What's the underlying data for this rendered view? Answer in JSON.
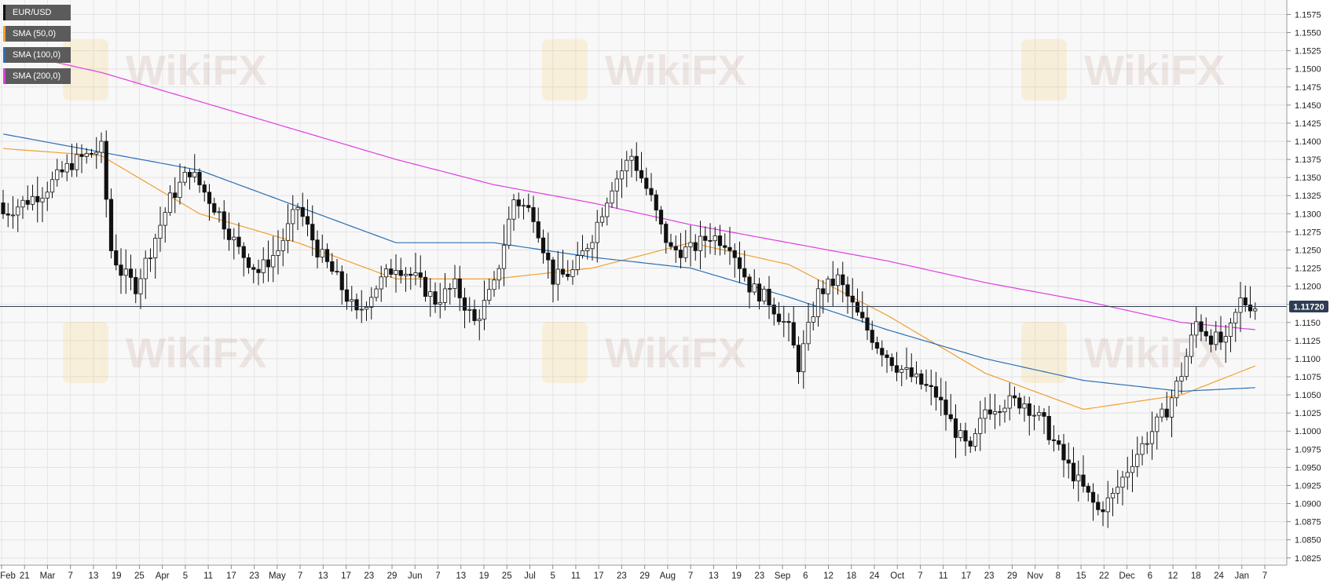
{
  "watermark": {
    "text": "WikiFX"
  },
  "legend": [
    {
      "label": "EUR/USD",
      "color": "#111111"
    },
    {
      "label": "SMA (50,0)",
      "color": "#f0a030"
    },
    {
      "label": "SMA (100,0)",
      "color": "#2c6fb4"
    },
    {
      "label": "SMA (200,0)",
      "color": "#e03ce0"
    }
  ],
  "current_price": {
    "label": "1.11720",
    "value": 1.1172,
    "color": "#2f3e55"
  },
  "chart_data": {
    "type": "candlestick",
    "symbol": "EUR/USD",
    "ylim": [
      1.0815,
      1.1595
    ],
    "grid": true,
    "y_ticks": [
      "1.1575",
      "1.1550",
      "1.1525",
      "1.1500",
      "1.1475",
      "1.1450",
      "1.1425",
      "1.1400",
      "1.1375",
      "1.1350",
      "1.1325",
      "1.1300",
      "1.1275",
      "1.1250",
      "1.1225",
      "1.1200",
      "1.1175",
      "1.1150",
      "1.1125",
      "1.1100",
      "1.1075",
      "1.1050",
      "1.1025",
      "1.1000",
      "1.0975",
      "1.0950",
      "1.0925",
      "1.0900",
      "1.0875",
      "1.0850",
      "1.0825"
    ],
    "x_ticks": [
      "Feb",
      "21",
      "Mar",
      "7",
      "13",
      "19",
      "25",
      "Apr",
      "5",
      "11",
      "17",
      "23",
      "May",
      "7",
      "13",
      "17",
      "23",
      "29",
      "Jun",
      "7",
      "13",
      "19",
      "25",
      "Jul",
      "5",
      "11",
      "17",
      "23",
      "29",
      "Aug",
      "7",
      "13",
      "19",
      "23",
      "Sep",
      "6",
      "12",
      "18",
      "24",
      "Oct",
      "7",
      "11",
      "17",
      "23",
      "29",
      "Nov",
      "8",
      "15",
      "22",
      "Dec",
      "6",
      "12",
      "18",
      "24",
      "Jan",
      "7"
    ],
    "bar_count": 256,
    "close_anchors": [
      [
        0,
        1.13
      ],
      [
        8,
        1.133
      ],
      [
        14,
        1.137
      ],
      [
        20,
        1.139
      ],
      [
        22,
        1.125
      ],
      [
        24,
        1.122
      ],
      [
        27,
        1.12
      ],
      [
        30,
        1.125
      ],
      [
        34,
        1.132
      ],
      [
        38,
        1.136
      ],
      [
        41,
        1.133
      ],
      [
        44,
        1.13
      ],
      [
        48,
        1.125
      ],
      [
        52,
        1.122
      ],
      [
        56,
        1.125
      ],
      [
        60,
        1.131
      ],
      [
        64,
        1.125
      ],
      [
        68,
        1.121
      ],
      [
        72,
        1.116
      ],
      [
        76,
        1.12
      ],
      [
        80,
        1.123
      ],
      [
        84,
        1.121
      ],
      [
        88,
        1.118
      ],
      [
        92,
        1.12
      ],
      [
        96,
        1.115
      ],
      [
        100,
        1.12
      ],
      [
        104,
        1.132
      ],
      [
        108,
        1.13
      ],
      [
        112,
        1.121
      ],
      [
        116,
        1.122
      ],
      [
        120,
        1.127
      ],
      [
        124,
        1.134
      ],
      [
        128,
        1.138
      ],
      [
        132,
        1.132
      ],
      [
        134,
        1.128
      ],
      [
        136,
        1.125
      ],
      [
        140,
        1.125
      ],
      [
        144,
        1.127
      ],
      [
        148,
        1.126
      ],
      [
        152,
        1.12
      ],
      [
        156,
        1.118
      ],
      [
        160,
        1.114
      ],
      [
        162,
        1.109
      ],
      [
        166,
        1.119
      ],
      [
        170,
        1.121
      ],
      [
        174,
        1.116
      ],
      [
        178,
        1.112
      ],
      [
        182,
        1.109
      ],
      [
        186,
        1.107
      ],
      [
        190,
        1.105
      ],
      [
        194,
        1.1
      ],
      [
        197,
        1.097
      ],
      [
        200,
        1.103
      ],
      [
        204,
        1.104
      ],
      [
        208,
        1.104
      ],
      [
        212,
        1.101
      ],
      [
        216,
        1.096
      ],
      [
        220,
        1.092
      ],
      [
        223,
        1.089
      ],
      [
        226,
        1.091
      ],
      [
        230,
        1.096
      ],
      [
        234,
        1.1
      ],
      [
        237,
        1.103
      ],
      [
        240,
        1.108
      ],
      [
        243,
        1.115
      ],
      [
        246,
        1.113
      ],
      [
        249,
        1.112
      ],
      [
        252,
        1.118
      ],
      [
        255,
        1.1172
      ]
    ],
    "sma_anchors": {
      "sma50": [
        [
          0,
          1.139
        ],
        [
          20,
          1.138
        ],
        [
          40,
          1.13
        ],
        [
          60,
          1.126
        ],
        [
          80,
          1.121
        ],
        [
          100,
          1.121
        ],
        [
          120,
          1.1225
        ],
        [
          140,
          1.126
        ],
        [
          160,
          1.123
        ],
        [
          180,
          1.116
        ],
        [
          200,
          1.108
        ],
        [
          220,
          1.103
        ],
        [
          240,
          1.105
        ],
        [
          255,
          1.109
        ]
      ],
      "sma100": [
        [
          0,
          1.141
        ],
        [
          20,
          1.1385
        ],
        [
          40,
          1.136
        ],
        [
          60,
          1.131
        ],
        [
          80,
          1.126
        ],
        [
          100,
          1.126
        ],
        [
          120,
          1.124
        ],
        [
          140,
          1.1225
        ],
        [
          160,
          1.1185
        ],
        [
          180,
          1.114
        ],
        [
          200,
          1.11
        ],
        [
          220,
          1.107
        ],
        [
          240,
          1.1055
        ],
        [
          255,
          1.106
        ]
      ],
      "sma200": [
        [
          0,
          1.1525
        ],
        [
          20,
          1.1495
        ],
        [
          40,
          1.1455
        ],
        [
          60,
          1.1415
        ],
        [
          80,
          1.1375
        ],
        [
          100,
          1.134
        ],
        [
          120,
          1.1315
        ],
        [
          140,
          1.1285
        ],
        [
          160,
          1.126
        ],
        [
          180,
          1.1235
        ],
        [
          200,
          1.1205
        ],
        [
          220,
          1.118
        ],
        [
          240,
          1.115
        ],
        [
          255,
          1.114
        ]
      ]
    }
  }
}
